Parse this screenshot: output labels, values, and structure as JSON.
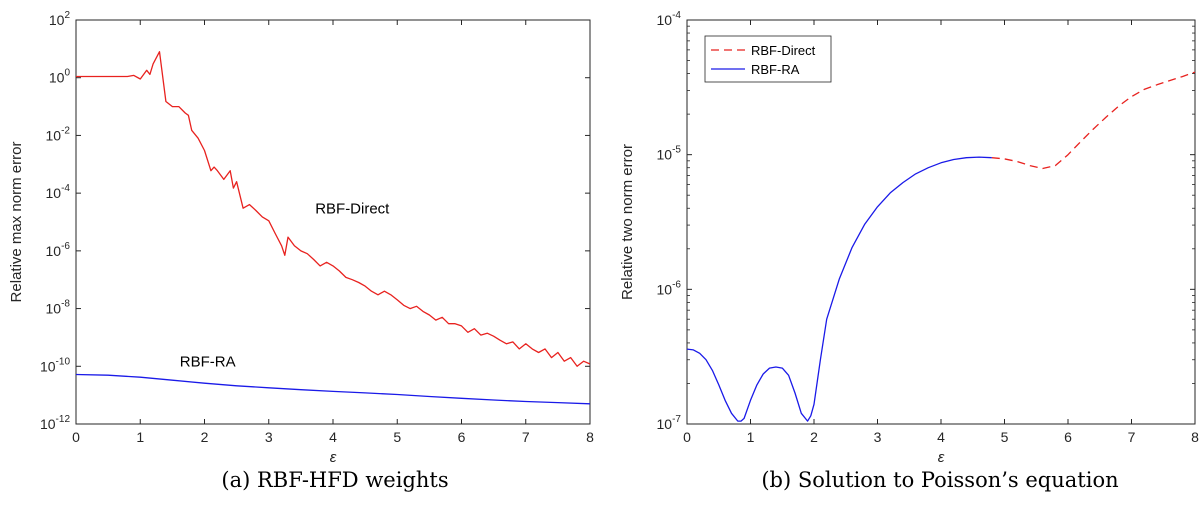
{
  "chart_data": [
    {
      "type": "line",
      "scale_y": "log",
      "grid": false,
      "xlabel": "ε",
      "ylabel": "Relative max norm error",
      "xlim": [
        0,
        8
      ],
      "ylim": [
        1e-12,
        100
      ],
      "xticks": [
        "0",
        "1",
        "2",
        "3",
        "4",
        "5",
        "6",
        "7",
        "8"
      ],
      "yticks": [
        {
          "base": "10",
          "exp": "-12",
          "value": 1e-12
        },
        {
          "base": "10",
          "exp": "-10",
          "value": 1e-10
        },
        {
          "base": "10",
          "exp": "-8",
          "value": 1e-08
        },
        {
          "base": "10",
          "exp": "-6",
          "value": 1e-06
        },
        {
          "base": "10",
          "exp": "-4",
          "value": 0.0001
        },
        {
          "base": "10",
          "exp": "-2",
          "value": 0.01
        },
        {
          "base": "10",
          "exp": "0",
          "value": 1
        },
        {
          "base": "10",
          "exp": "2",
          "value": 100
        }
      ],
      "annotations": [
        {
          "text": "RBF-Direct",
          "x": 4.3,
          "y": 2e-05
        },
        {
          "text": "RBF-RA",
          "x": 2.05,
          "y": 1e-10
        }
      ],
      "series": [
        {
          "name": "RBF-Direct",
          "color": "#e8221f",
          "dash": "solid",
          "x": [
            0,
            0.1,
            0.2,
            0.3,
            0.4,
            0.5,
            0.6,
            0.7,
            0.8,
            0.9,
            1.0,
            1.1,
            1.15,
            1.2,
            1.3,
            1.4,
            1.5,
            1.6,
            1.7,
            1.75,
            1.8,
            1.9,
            2.0,
            2.1,
            2.15,
            2.2,
            2.3,
            2.4,
            2.45,
            2.5,
            2.6,
            2.7,
            2.8,
            2.9,
            3.0,
            3.1,
            3.2,
            3.25,
            3.3,
            3.4,
            3.5,
            3.6,
            3.7,
            3.8,
            3.9,
            4.0,
            4.1,
            4.2,
            4.3,
            4.4,
            4.5,
            4.6,
            4.7,
            4.8,
            4.9,
            5.0,
            5.1,
            5.2,
            5.3,
            5.4,
            5.5,
            5.6,
            5.7,
            5.8,
            5.9,
            6.0,
            6.1,
            6.2,
            6.3,
            6.4,
            6.5,
            6.6,
            6.7,
            6.8,
            6.9,
            7.0,
            7.1,
            7.2,
            7.3,
            7.4,
            7.5,
            7.6,
            7.7,
            7.8,
            7.9,
            8.0
          ],
          "y": [
            1.1,
            1.1,
            1.1,
            1.1,
            1.1,
            1.1,
            1.1,
            1.1,
            1.1,
            1.2,
            0.9,
            1.8,
            1.3,
            3.0,
            8.0,
            0.15,
            0.1,
            0.1,
            0.06,
            0.05,
            0.015,
            0.008,
            0.003,
            0.0006,
            0.0008,
            0.0006,
            0.0003,
            0.0006,
            0.00015,
            0.00025,
            3e-05,
            4e-05,
            2.5e-05,
            1.5e-05,
            1.1e-05,
            4e-06,
            1.5e-06,
            7e-07,
            3e-06,
            1.5e-06,
            1e-06,
            8e-07,
            5e-07,
            3e-07,
            4e-07,
            3e-07,
            2e-07,
            1.2e-07,
            1e-07,
            8e-08,
            6e-08,
            4e-08,
            3e-08,
            4e-08,
            3e-08,
            2e-08,
            1.3e-08,
            1e-08,
            1.2e-08,
            8e-09,
            6e-09,
            4e-09,
            5e-09,
            3e-09,
            3e-09,
            2.5e-09,
            1.5e-09,
            2e-09,
            1.2e-09,
            1.4e-09,
            1.1e-09,
            8e-10,
            6e-10,
            7e-10,
            4e-10,
            6e-10,
            4e-10,
            3e-10,
            4e-10,
            2e-10,
            3e-10,
            1.5e-10,
            2e-10,
            1e-10,
            1.5e-10,
            1.2e-10
          ]
        },
        {
          "name": "RBF-RA",
          "color": "#1a1ae8",
          "dash": "solid",
          "x": [
            0,
            0.5,
            1,
            1.5,
            2,
            2.5,
            3,
            3.5,
            4,
            4.5,
            5,
            5.5,
            6,
            6.5,
            7,
            7.5,
            8
          ],
          "y": [
            5.2e-11,
            4.9e-11,
            4.2e-11,
            3.3e-11,
            2.6e-11,
            2.1e-11,
            1.8e-11,
            1.55e-11,
            1.35e-11,
            1.2e-11,
            1.05e-11,
            9e-12,
            7.8e-12,
            6.8e-12,
            6e-12,
            5.5e-12,
            5e-12
          ]
        }
      ]
    },
    {
      "type": "line",
      "scale_y": "log",
      "grid": false,
      "xlabel": "ε",
      "ylabel": "Relative two norm error",
      "xlim": [
        0,
        8
      ],
      "ylim": [
        1e-07,
        0.0001
      ],
      "xticks": [
        "0",
        "1",
        "2",
        "3",
        "4",
        "5",
        "6",
        "7",
        "8"
      ],
      "yticks": [
        {
          "base": "10",
          "exp": "-7",
          "value": 1e-07
        },
        {
          "base": "10",
          "exp": "-6",
          "value": 1e-06
        },
        {
          "base": "10",
          "exp": "-5",
          "value": 1e-05
        },
        {
          "base": "10",
          "exp": "-4",
          "value": 0.0001
        }
      ],
      "legend_position": "top-left",
      "series": [
        {
          "name": "RBF-Direct",
          "color": "#e8221f",
          "dash": "dashed",
          "x": [
            4.8,
            5.0,
            5.2,
            5.4,
            5.6,
            5.8,
            6.0,
            6.2,
            6.4,
            6.6,
            6.8,
            7.0,
            7.2,
            7.4,
            7.6,
            7.8,
            8.0
          ],
          "y": [
            9.5e-06,
            9.3e-06,
            8.9e-06,
            8.3e-06,
            7.9e-06,
            8.3e-06,
            1e-05,
            1.25e-05,
            1.55e-05,
            1.9e-05,
            2.3e-05,
            2.7e-05,
            3.05e-05,
            3.3e-05,
            3.55e-05,
            3.8e-05,
            4.1e-05
          ]
        },
        {
          "name": "RBF-RA",
          "color": "#1a1ae8",
          "dash": "solid",
          "x": [
            0,
            0.1,
            0.2,
            0.3,
            0.4,
            0.5,
            0.6,
            0.7,
            0.8,
            0.85,
            0.9,
            1.0,
            1.1,
            1.2,
            1.3,
            1.4,
            1.5,
            1.6,
            1.7,
            1.8,
            1.9,
            1.95,
            2.0,
            2.1,
            2.2,
            2.4,
            2.6,
            2.8,
            3.0,
            3.2,
            3.4,
            3.6,
            3.8,
            4.0,
            4.2,
            4.4,
            4.6,
            4.8
          ],
          "y": [
            3.6e-07,
            3.55e-07,
            3.35e-07,
            3e-07,
            2.5e-07,
            1.95e-07,
            1.5e-07,
            1.2e-07,
            1.05e-07,
            1.05e-07,
            1.1e-07,
            1.5e-07,
            1.95e-07,
            2.35e-07,
            2.6e-07,
            2.65e-07,
            2.6e-07,
            2.3e-07,
            1.7e-07,
            1.2e-07,
            1.05e-07,
            1.15e-07,
            1.4e-07,
            3e-07,
            6e-07,
            1.2e-06,
            2.05e-06,
            3.05e-06,
            4.1e-06,
            5.2e-06,
            6.2e-06,
            7.2e-06,
            8e-06,
            8.7e-06,
            9.2e-06,
            9.5e-06,
            9.6e-06,
            9.5e-06
          ]
        }
      ]
    }
  ],
  "captions": [
    "(a) RBF-HFD weights",
    "(b) Solution to Poisson’s equation"
  ]
}
